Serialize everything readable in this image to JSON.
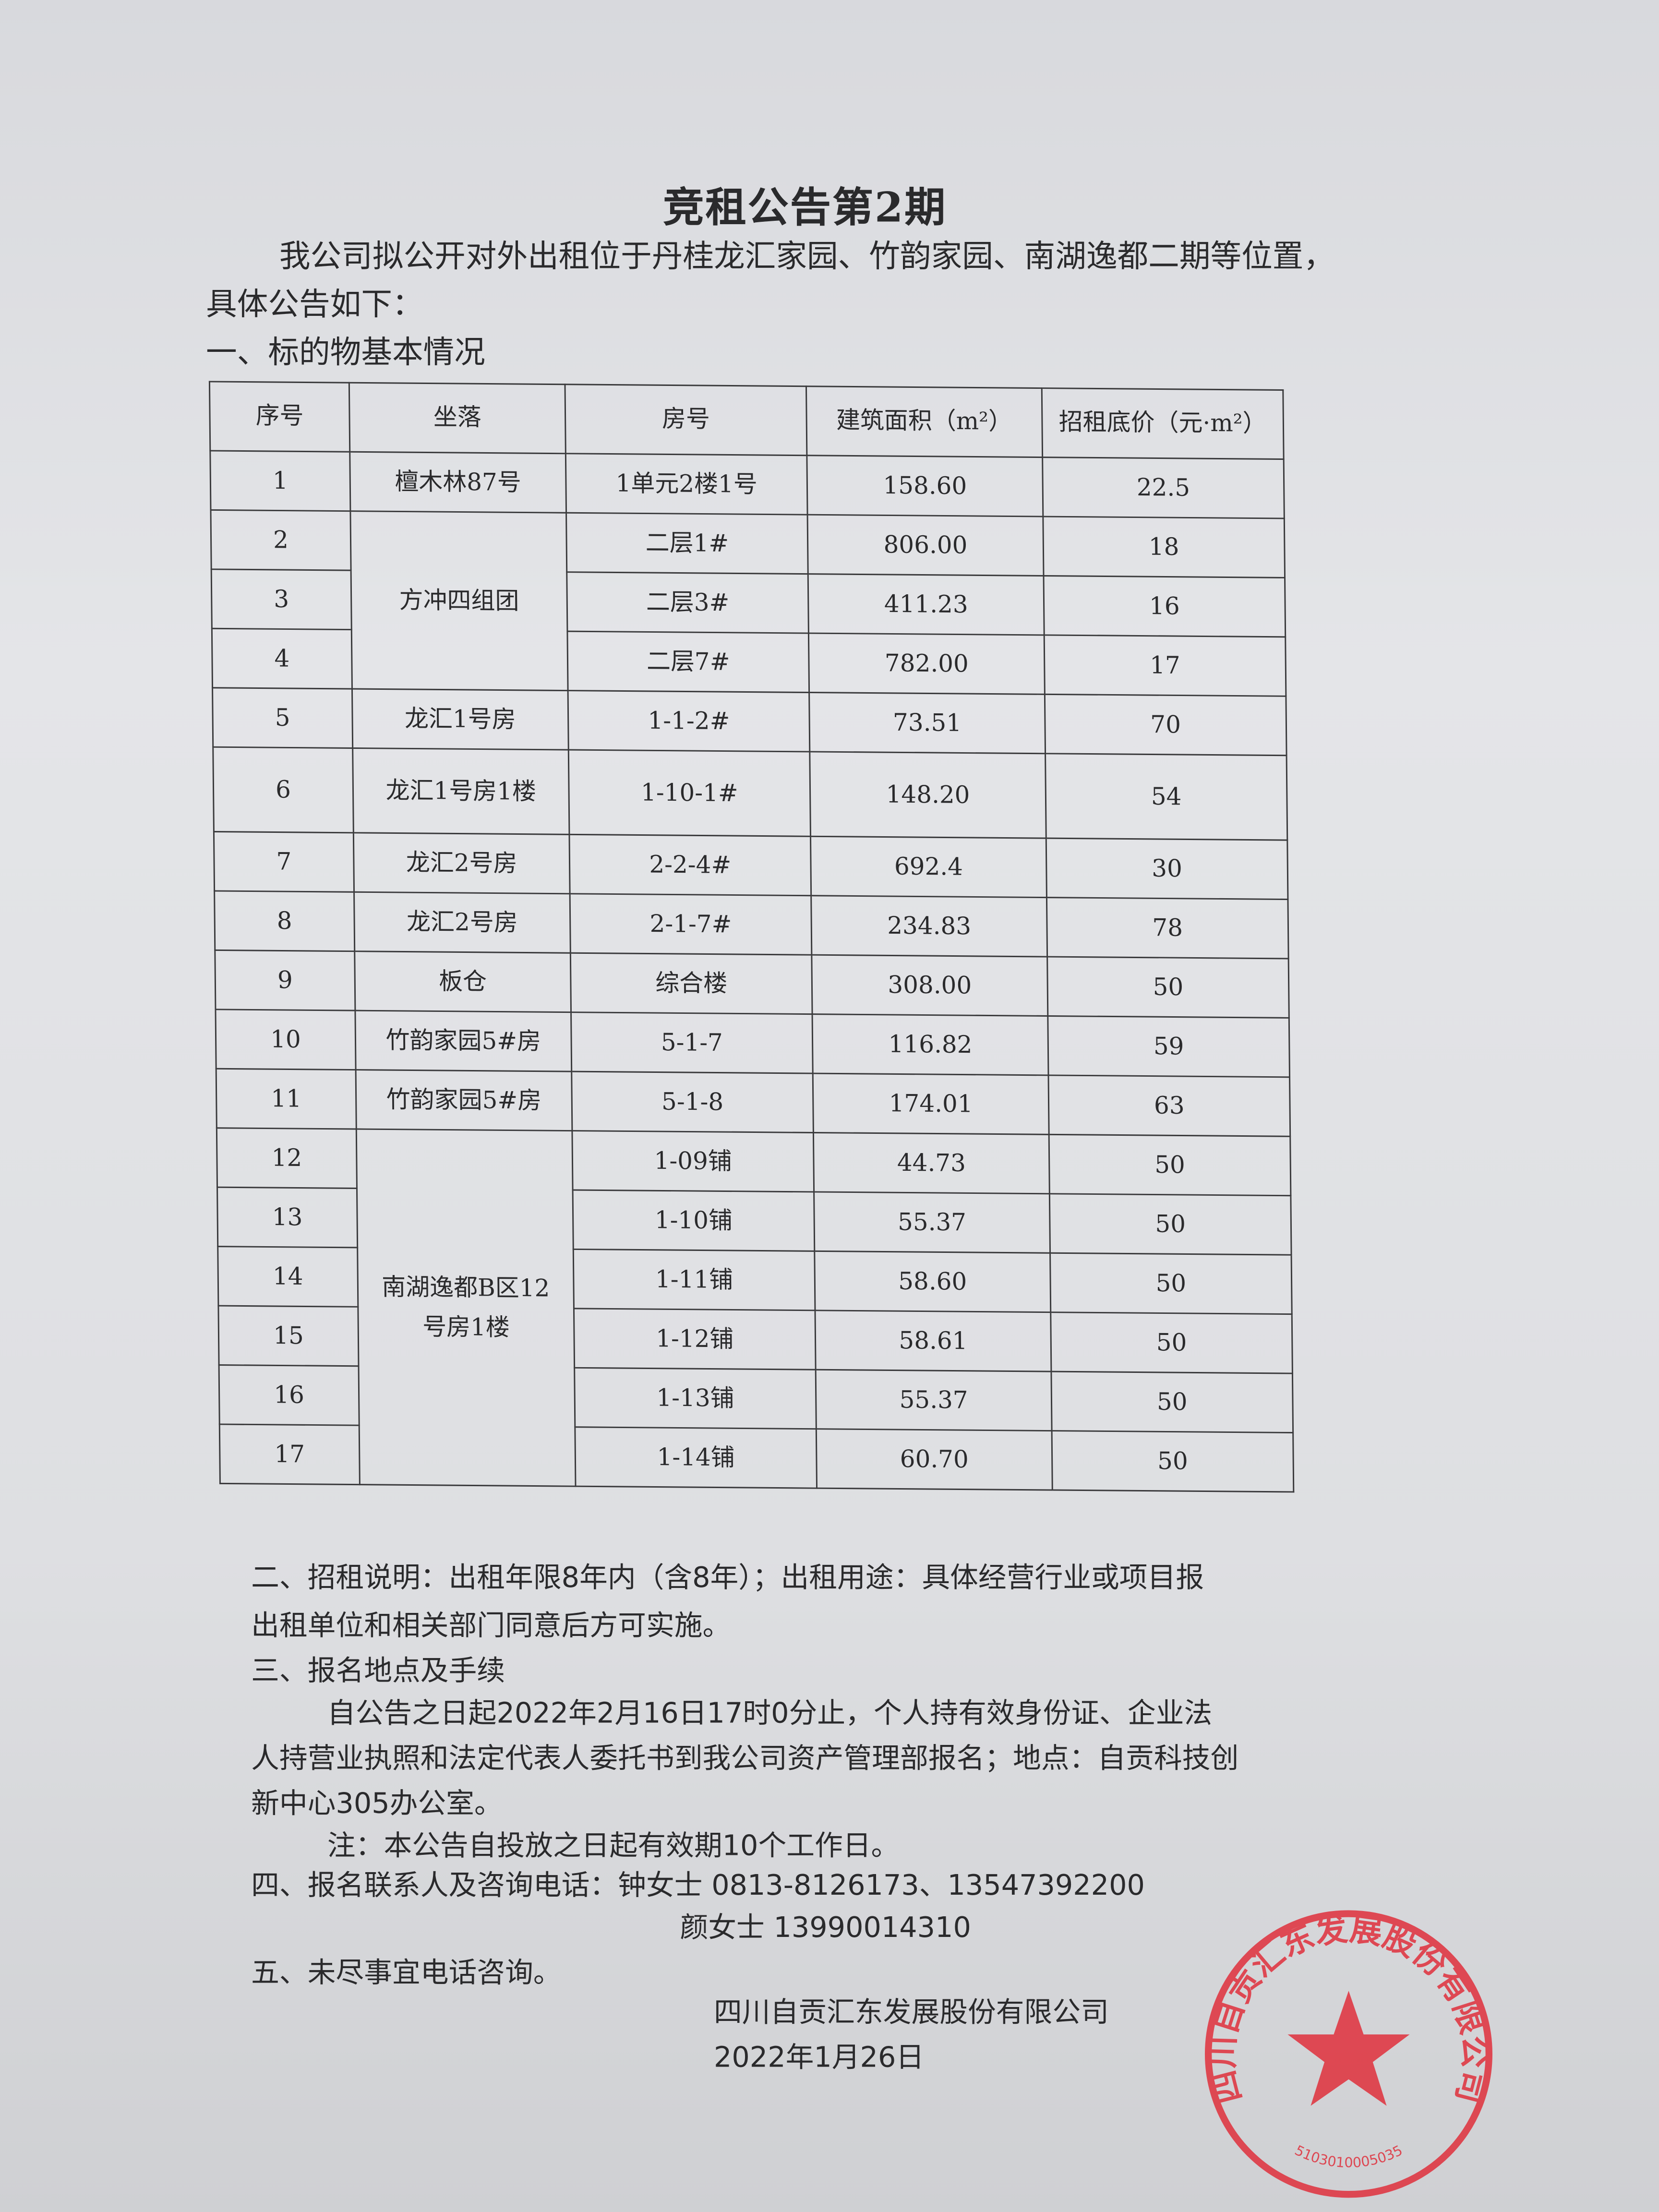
{
  "title": "竞租公告第2期",
  "intro_line1": "我公司拟公开对外出租位于丹桂龙汇家园、竹韵家园、南湖逸都二期等位置，",
  "intro_line2": "具体公告如下：",
  "section1": "一、标的物基本情况",
  "table": {
    "headers": [
      "序号",
      "坐落",
      "房号",
      "建筑面积（m²）",
      "招租底价（元·m²）"
    ],
    "rows": [
      {
        "no": "1",
        "loc": "檀木林87号",
        "room": "1单元2楼1号",
        "area": "158.60",
        "price": "22.5"
      },
      {
        "no": "2",
        "loc": "方冲四组团",
        "room": "二层1#",
        "area": "806.00",
        "price": "18"
      },
      {
        "no": "3",
        "loc": "",
        "room": "二层3#",
        "area": "411.23",
        "price": "16"
      },
      {
        "no": "4",
        "loc": "",
        "room": "二层7#",
        "area": "782.00",
        "price": "17"
      },
      {
        "no": "5",
        "loc": "龙汇1号房",
        "room": "1-1-2#",
        "area": "73.51",
        "price": "70"
      },
      {
        "no": "6",
        "loc": "龙汇1号房1楼",
        "room": "1-10-1#",
        "area": "148.20",
        "price": "54"
      },
      {
        "no": "7",
        "loc": "龙汇2号房",
        "room": "2-2-4#",
        "area": "692.4",
        "price": "30"
      },
      {
        "no": "8",
        "loc": "龙汇2号房",
        "room": "2-1-7#",
        "area": "234.83",
        "price": "78"
      },
      {
        "no": "9",
        "loc": "板仓",
        "room": "综合楼",
        "area": "308.00",
        "price": "50"
      },
      {
        "no": "10",
        "loc": "竹韵家园5#房",
        "room": "5-1-7",
        "area": "116.82",
        "price": "59"
      },
      {
        "no": "11",
        "loc": "竹韵家园5#房",
        "room": "5-1-8",
        "area": "174.01",
        "price": "63"
      },
      {
        "no": "12",
        "loc": "南湖逸都B区12号房1楼",
        "room": "1-09铺",
        "area": "44.73",
        "price": "50"
      },
      {
        "no": "13",
        "loc": "",
        "room": "1-10铺",
        "area": "55.37",
        "price": "50"
      },
      {
        "no": "14",
        "loc": "",
        "room": "1-11铺",
        "area": "58.60",
        "price": "50"
      },
      {
        "no": "15",
        "loc": "",
        "room": "1-12铺",
        "area": "58.61",
        "price": "50"
      },
      {
        "no": "16",
        "loc": "",
        "room": "1-13铺",
        "area": "55.37",
        "price": "50"
      },
      {
        "no": "17",
        "loc": "",
        "room": "1-14铺",
        "area": "60.70",
        "price": "50"
      }
    ]
  },
  "section2_line1": "二、招租说明：出租年限8年内（含8年）；出租用途：具体经营行业或项目报",
  "section2_line2": "出租单位和相关部门同意后方可实施。",
  "section3": "三、报名地点及手续",
  "section3_line1": "自公告之日起2022年2月16日17时0分止，个人持有效身份证、企业法",
  "section3_line2": "人持营业执照和法定代表人委托书到我公司资产管理部报名；地点：自贡科技创",
  "section3_line3": "新中心305办公室。",
  "note": "注：本公告自投放之日起有效期10个工作日。",
  "section4": "四、报名联系人及咨询电话：钟女士 0813-8126173、13547392200",
  "section4_contact2": "颜女士 13990014310",
  "section5": "五、未尽事宜电话咨询。",
  "company": "四川自贡汇东发展股份有限公司",
  "date": "2022年1月26日",
  "stamp": {
    "text": "四川自贡汇东发展股份有限公司",
    "code": "5103010005035",
    "color": "#e0303c"
  }
}
